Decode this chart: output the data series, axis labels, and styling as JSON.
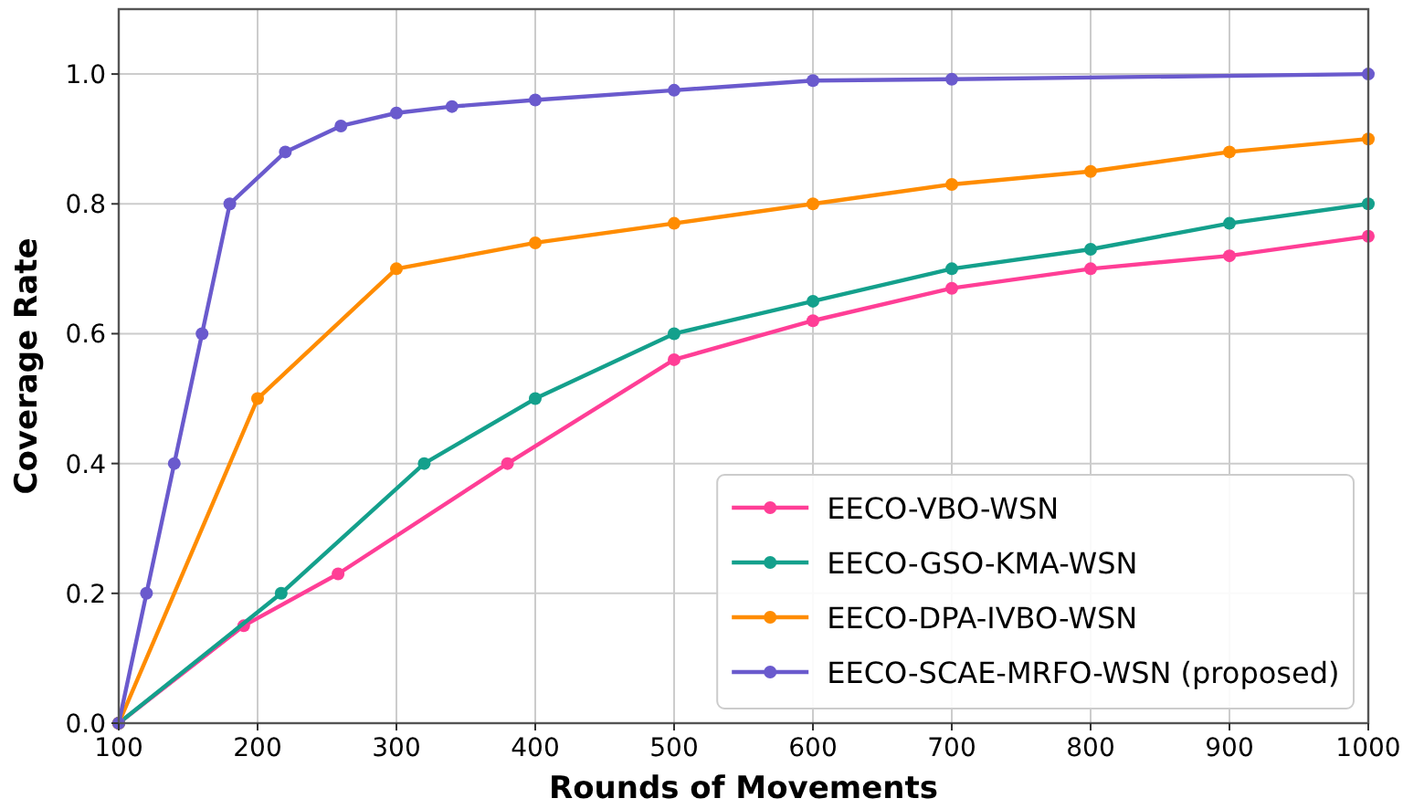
{
  "chart_data": {
    "type": "line",
    "xlabel": "Rounds of Movements",
    "ylabel": "Coverage Rate",
    "xlim": [
      100,
      1000
    ],
    "ylim": [
      0,
      1.1
    ],
    "xticks": [
      100,
      200,
      300,
      400,
      500,
      600,
      700,
      800,
      900,
      1000
    ],
    "yticks": [
      {
        "value": 0,
        "label": "0.0"
      },
      0.2,
      0.4,
      0.6,
      0.8,
      {
        "value": 1,
        "label": "1.0"
      }
    ],
    "grid": true,
    "legend": "bottom right",
    "marker": "circle",
    "line_style": "solid",
    "series": [
      {
        "name": "EECO-VBO-WSN",
        "color": "#ff3e96",
        "x": [
          100,
          190,
          258,
          380,
          500,
          600,
          700,
          800,
          900,
          1000
        ],
        "values": [
          0,
          0.15,
          0.23,
          0.4,
          0.56,
          0.62,
          0.67,
          0.7,
          0.72,
          0.75
        ]
      },
      {
        "name": "EECO-GSO-KMA-WSN",
        "color": "#14a08c",
        "x": [
          100,
          217,
          320,
          400,
          500,
          600,
          700,
          800,
          900,
          1000
        ],
        "values": [
          0,
          0.2,
          0.4,
          0.5,
          0.6,
          0.65,
          0.7,
          0.73,
          0.77,
          0.8
        ]
      },
      {
        "name": "EECO-DPA-IVBO-WSN",
        "color": "#ff8c00",
        "x": [
          100,
          200,
          300,
          400,
          500,
          600,
          700,
          800,
          900,
          1000
        ],
        "values": [
          0,
          0.5,
          0.7,
          0.74,
          0.77,
          0.8,
          0.83,
          0.85,
          0.88,
          0.9
        ]
      },
      {
        "name": "EECO-SCAE-MRFO-WSN (proposed)",
        "color": "#6a5acd",
        "x": [
          100,
          120,
          140,
          160,
          180,
          220,
          260,
          300,
          340,
          400,
          500,
          600,
          700,
          1000
        ],
        "values": [
          0,
          0.2,
          0.4,
          0.6,
          0.8,
          0.88,
          0.92,
          0.94,
          0.95,
          0.96,
          0.975,
          0.99,
          0.992,
          1.0
        ]
      }
    ]
  }
}
